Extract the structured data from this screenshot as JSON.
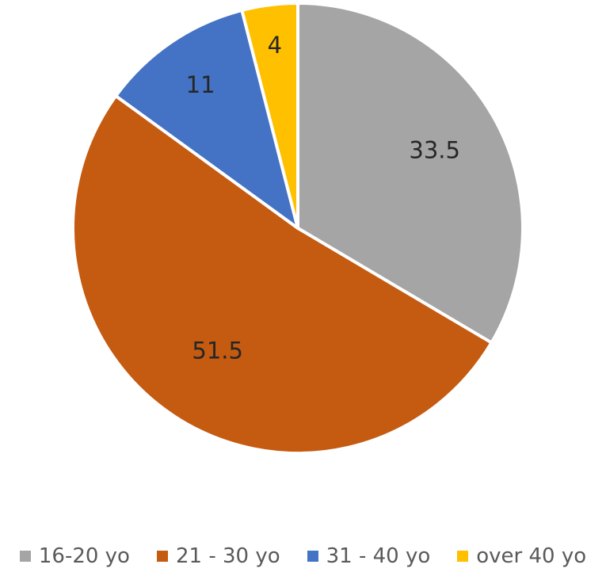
{
  "chart_data": {
    "type": "pie",
    "title": "",
    "start_angle_deg": 0,
    "direction": "clockwise",
    "legend_position": "bottom",
    "slices": [
      {
        "label": "16-20 yo",
        "value": 33.5,
        "display": "33.5",
        "color": "#A5A5A5"
      },
      {
        "label": "21 - 30 yo",
        "value": 51.5,
        "display": "51.5",
        "color": "#C55A11"
      },
      {
        "label": "31 - 40 yo",
        "value": 11,
        "display": "11",
        "color": "#4472C4"
      },
      {
        "label": "over 40 yo",
        "value": 4,
        "display": "4",
        "color": "#FFC000"
      }
    ]
  }
}
